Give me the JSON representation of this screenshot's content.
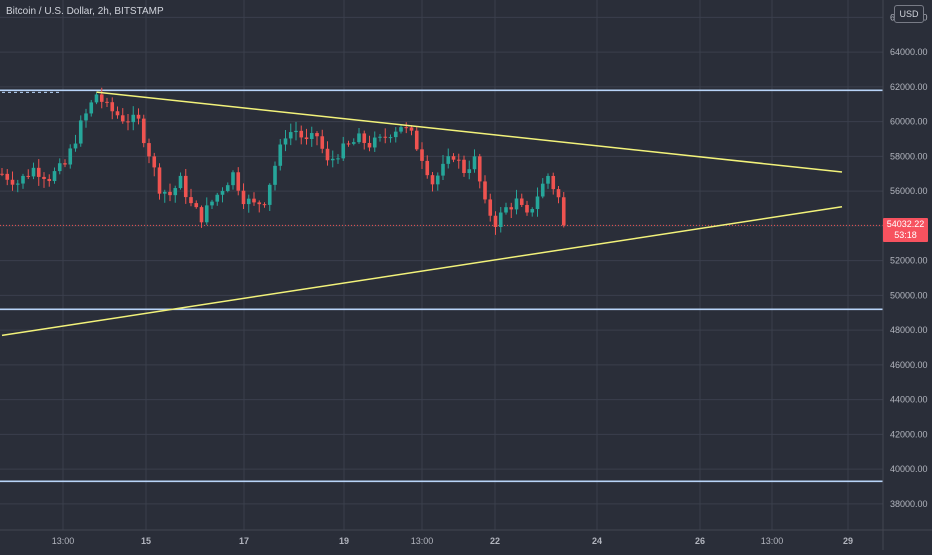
{
  "header": {
    "symbol_title": "Bitcoin / U.S. Dollar, 2h, BITSTAMP",
    "currency": "USD"
  },
  "last_price": {
    "price": "54032.22",
    "countdown": "53:18"
  },
  "colors": {
    "background": "#2a2e39",
    "grid": "#3a3f4c",
    "up_candle": "#26a69a",
    "down_candle": "#ef5350",
    "trendline": "#f2f27a",
    "horizontal_level": "#b8d4f8",
    "price_tag": "#f7525f",
    "axis_text": "#b2b5be"
  },
  "chart_data": {
    "type": "candlestick",
    "title": "Bitcoin / U.S. Dollar, 2h, BITSTAMP",
    "xlabel": "",
    "ylabel": "",
    "x_tick_labels": [
      "13:00",
      "15",
      "17",
      "19",
      "13:00",
      "22",
      "24",
      "26",
      "13:00",
      "29"
    ],
    "y_tick_labels": [
      38000,
      40000,
      42000,
      44000,
      46000,
      48000,
      50000,
      52000,
      54000,
      56000,
      58000,
      60000,
      62000,
      64000,
      66000
    ],
    "ylim": [
      36500,
      67000
    ],
    "grid": true,
    "price_path": [
      [
        0,
        57000
      ],
      [
        3,
        56500
      ],
      [
        6,
        57300
      ],
      [
        9,
        56800
      ],
      [
        12,
        57500
      ],
      [
        15,
        59800
      ],
      [
        18,
        61600
      ],
      [
        20,
        60800
      ],
      [
        23,
        60200
      ],
      [
        26,
        60000
      ],
      [
        28,
        58200
      ],
      [
        30,
        56200
      ],
      [
        32,
        55800
      ],
      [
        34,
        56600
      ],
      [
        36,
        55200
      ],
      [
        38,
        54500
      ],
      [
        40,
        55400
      ],
      [
        42,
        56200
      ],
      [
        44,
        57000
      ],
      [
        46,
        55600
      ],
      [
        48,
        55200
      ],
      [
        50,
        55500
      ],
      [
        52,
        57500
      ],
      [
        54,
        59300
      ],
      [
        56,
        59500
      ],
      [
        58,
        58800
      ],
      [
        60,
        59200
      ],
      [
        62,
        57600
      ],
      [
        64,
        58200
      ],
      [
        66,
        58600
      ],
      [
        68,
        59000
      ],
      [
        70,
        58700
      ],
      [
        72,
        58900
      ],
      [
        74,
        59400
      ],
      [
        76,
        59800
      ],
      [
        78,
        59200
      ],
      [
        80,
        58000
      ],
      [
        82,
        56500
      ],
      [
        84,
        57300
      ],
      [
        86,
        58100
      ],
      [
        88,
        57200
      ],
      [
        90,
        57800
      ],
      [
        92,
        55200
      ],
      [
        94,
        54200
      ],
      [
        96,
        55000
      ],
      [
        98,
        55400
      ],
      [
        100,
        54500
      ],
      [
        102,
        55800
      ],
      [
        104,
        56900
      ],
      [
        106,
        55600
      ],
      [
        107,
        54032
      ]
    ],
    "trendlines": [
      {
        "name": "upper",
        "from": {
          "bar": 18,
          "price": 61700
        },
        "to": {
          "bar": 160,
          "price": 57100
        }
      },
      {
        "name": "lower",
        "from": {
          "bar": 0,
          "price": 47700
        },
        "to": {
          "bar": 160,
          "price": 55100
        }
      }
    ],
    "horizontal_levels": [
      61800,
      49200,
      39300
    ],
    "last_price": 54032.22
  }
}
